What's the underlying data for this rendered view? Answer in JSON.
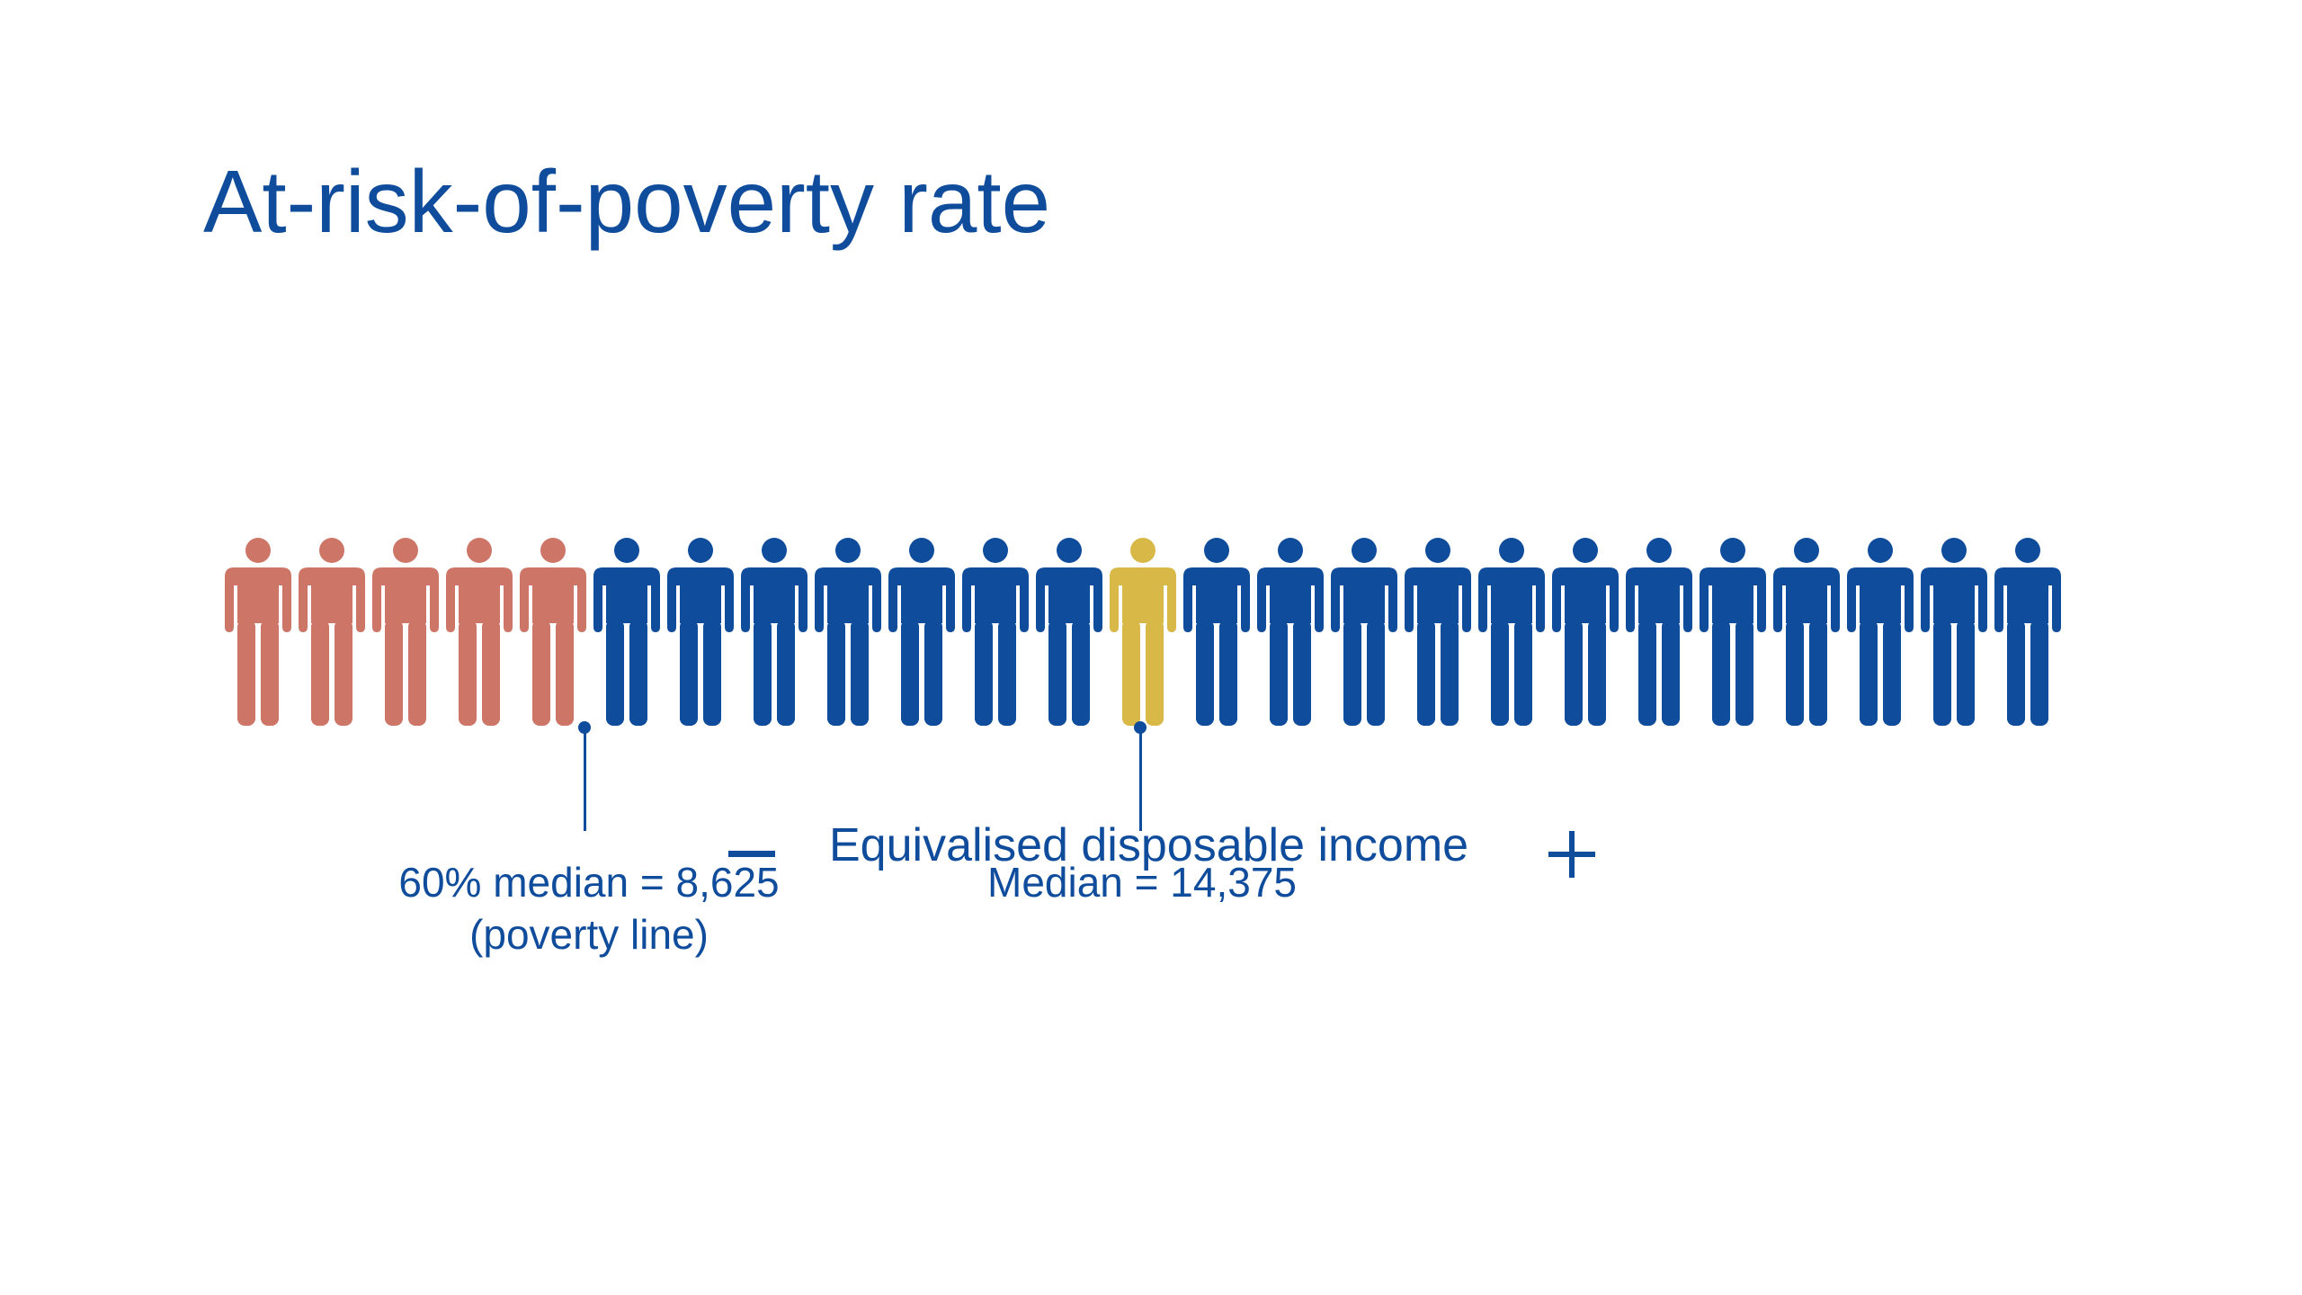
{
  "title": "At-risk-of-poverty rate",
  "axis": {
    "minus_icon": "minus-icon",
    "label": "Equivalised disposable income",
    "plus_icon": "plus-icon"
  },
  "colors": {
    "below_poverty_line": "#cd7667",
    "population": "#0f4c9c",
    "median": "#d8b847"
  },
  "people": {
    "total": 25,
    "below_poverty_line": 5,
    "median_person_index": 12
  },
  "markers": {
    "poverty_line": {
      "line1": "60% median = 8,625",
      "line2": "(poverty line)"
    },
    "median": {
      "line1": "Median = 14,375"
    }
  }
}
